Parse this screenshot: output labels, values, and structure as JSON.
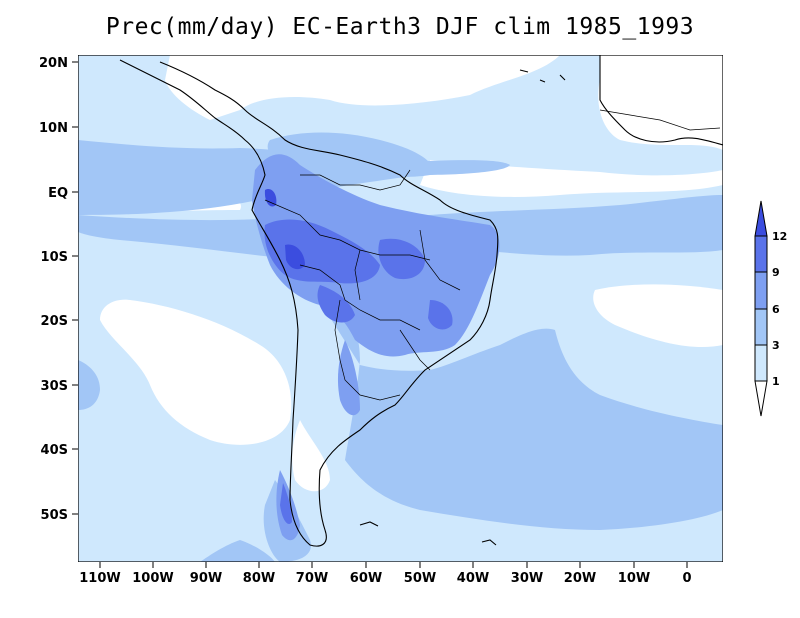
{
  "title": "Prec(mm/day) EC-Earth3 DJF clim 1985_1993",
  "map": {
    "x_ticks": [
      "110W",
      "100W",
      "90W",
      "80W",
      "70W",
      "60W",
      "50W",
      "40W",
      "30W",
      "20W",
      "10W",
      "0"
    ],
    "y_ticks": [
      "20N",
      "10N",
      "EQ",
      "10S",
      "20S",
      "30S",
      "40S",
      "50S"
    ]
  },
  "colorbar": {
    "levels": [
      "1",
      "3",
      "6",
      "9",
      "12"
    ],
    "colors": {
      "lt1": "#ffffff",
      "1to3": "#cfe8fd",
      "3to6": "#a2c6f6",
      "6to9": "#7e9ff1",
      "9to12": "#5a73ea",
      "gt12": "#3b4ddf"
    }
  }
}
